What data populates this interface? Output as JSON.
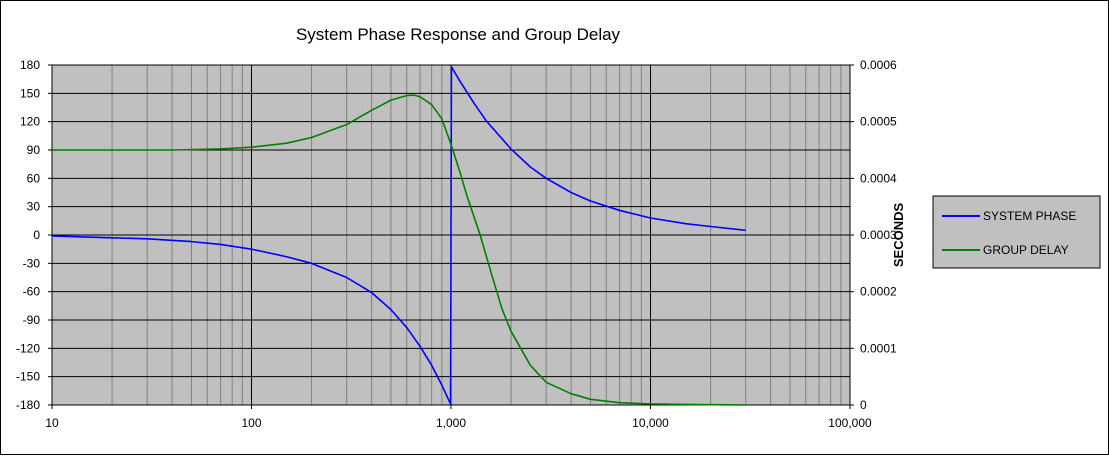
{
  "chart_data": {
    "type": "line",
    "title": "System Phase Response and Group Delay",
    "x_scale": "log",
    "xlim": [
      10,
      100000
    ],
    "x_ticks": [
      10,
      100,
      1000,
      10000,
      100000
    ],
    "x_tick_labels": [
      "10",
      "100",
      "1,000",
      "10,000",
      "100,000"
    ],
    "ylim_left": [
      -180,
      180
    ],
    "y_ticks_left": [
      -180,
      -150,
      -120,
      -90,
      -60,
      -30,
      0,
      30,
      60,
      90,
      120,
      150,
      180
    ],
    "y_tick_labels_left": [
      "-180",
      "-150",
      "-120",
      "-90",
      "-60",
      "-30",
      "0",
      "30",
      "60",
      "90",
      "120",
      "150",
      "180"
    ],
    "ylim_right": [
      0,
      0.0006
    ],
    "y_ticks_right": [
      0,
      0.0001,
      0.0002,
      0.0003,
      0.0004,
      0.0005,
      0.0006
    ],
    "y_tick_labels_right": [
      "0",
      "0.0001",
      "0.0002",
      "0.0003",
      "0.0004",
      "0.0005",
      "0.0006"
    ],
    "ylabel_right": "SECONDS",
    "grid": true,
    "plot_background": "#c0c0c0",
    "legend_position": "right",
    "series": [
      {
        "name": "SYSTEM PHASE",
        "axis": "left",
        "color": "#0000ff",
        "x": [
          10,
          20,
          30,
          50,
          70,
          100,
          150,
          200,
          300,
          400,
          500,
          600,
          700,
          800,
          900,
          995,
          1005,
          1100,
          1300,
          1500,
          2000,
          2500,
          3000,
          4000,
          5000,
          7000,
          10000,
          15000,
          20000,
          30000
        ],
        "y": [
          -1,
          -3,
          -4,
          -7,
          -10,
          -15,
          -23,
          -30,
          -45,
          -61,
          -79,
          -98,
          -118,
          -138,
          -159,
          -179,
          178,
          164,
          140,
          121,
          91,
          72,
          60,
          45,
          36,
          26,
          18,
          12,
          9,
          5
        ]
      },
      {
        "name": "GROUP DELAY",
        "axis": "right",
        "color": "#008000",
        "x": [
          10,
          20,
          40,
          70,
          100,
          150,
          200,
          300,
          400,
          500,
          600,
          650,
          700,
          800,
          900,
          1000,
          1100,
          1200,
          1400,
          1600,
          1800,
          2000,
          2500,
          3000,
          4000,
          5000,
          7000,
          10000,
          15000,
          20000,
          30000
        ],
        "y": [
          0.00045,
          0.00045,
          0.00045,
          0.000452,
          0.000455,
          0.000462,
          0.000472,
          0.000495,
          0.00052,
          0.000538,
          0.000546,
          0.000547,
          0.000544,
          0.00053,
          0.000505,
          0.00046,
          0.000415,
          0.00037,
          0.0003,
          0.00023,
          0.00017,
          0.00013,
          7e-05,
          4e-05,
          2e-05,
          1e-05,
          4e-06,
          2e-06,
          1e-06,
          5e-07,
          2e-07
        ]
      }
    ]
  }
}
